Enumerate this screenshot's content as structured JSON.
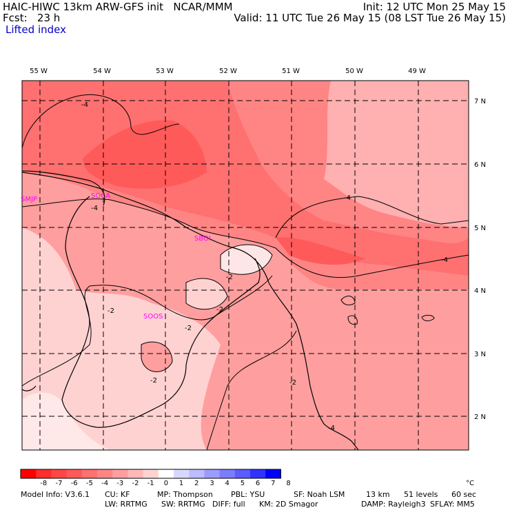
{
  "header": {
    "title": "HAIC-HIWC 13km ARW-GFS init   NCAR/MMM",
    "fcst": "Fcst:   23 h",
    "init": "Init: 12 UTC Mon 25 May 15",
    "valid": "Valid: 11 UTC Tue 26 May 15 (08 LST Tue 26 May 15)",
    "field": "Lifted index"
  },
  "map": {
    "lon_labels": [
      "55 W",
      "54 W",
      "53 W",
      "52 W",
      "51 W",
      "50 W",
      "49 W"
    ],
    "lat_labels": [
      "7 N",
      "6 N",
      "5 N",
      "4 N",
      "3 N",
      "2 N"
    ],
    "stations": [
      "SMJP",
      "SOCA",
      "SBOI",
      "SOOS"
    ],
    "contour_labels": [
      "-4",
      "-4",
      "-4",
      "-4",
      "-4",
      "-2",
      "-2",
      "-2",
      "-2",
      "-2",
      "-2"
    ],
    "station_color": "#ff00ff"
  },
  "colorbar": {
    "tick_labels": [
      "-8",
      "-7",
      "-6",
      "-5",
      "-4",
      "-3",
      "-2",
      "-1",
      "0",
      "1",
      "2",
      "3",
      "4",
      "5",
      "6",
      "7",
      "8"
    ],
    "unit": "°C",
    "colors": [
      "#ff0000",
      "#ff2d2d",
      "#ff4646",
      "#ff5a5a",
      "#ff7070",
      "#ff8585",
      "#ff9e9e",
      "#ffb8b8",
      "#ffd2d2",
      "#ffffff",
      "#d8d8ff",
      "#bcbcff",
      "#9c9cff",
      "#7c7cff",
      "#5c5cff",
      "#3232ff",
      "#0000ff"
    ]
  },
  "footer": {
    "model_info": "Model Info: V3.6.1",
    "cu": "CU: KF",
    "mp": "MP: Thompson",
    "pbl": "PBL: YSU",
    "sf": "SF: Noah LSM",
    "km": "13 km",
    "levels": "51 levels",
    "sec": "60 sec",
    "lw": "LW: RRTMG",
    "sw": "SW: RRTMG",
    "diff": "DIFF: full",
    "km2": "KM: 2D Smagor",
    "damp": "DAMP: Rayleigh3",
    "sflay": "SFLAY: MM5"
  }
}
